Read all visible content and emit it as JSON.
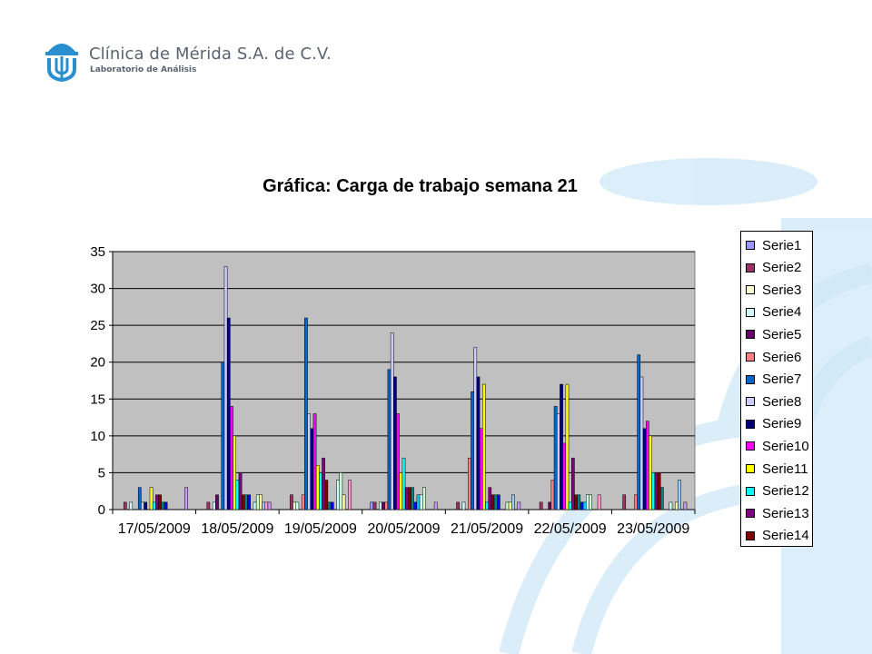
{
  "header": {
    "clinic_name": "Clínica de Mérida S.A. de C.V.",
    "clinic_subtitle": "Laboratorio de Análisis",
    "logo_icon": "clinic-logo-icon",
    "brand_color": "#2a8fce"
  },
  "chart_data": {
    "type": "bar",
    "title": "Gráfica: Carga de trabajo semana 21",
    "xlabel": "",
    "ylabel": "",
    "ylim": [
      0,
      35
    ],
    "yticks": [
      0,
      5,
      10,
      15,
      20,
      25,
      30,
      35
    ],
    "grid": true,
    "legend_placement": "right",
    "plot_background": "#c0c0c0",
    "categories": [
      "17/05/2009",
      "18/05/2009",
      "19/05/2009",
      "20/05/2009",
      "21/05/2009",
      "22/05/2009",
      "23/05/2009"
    ],
    "series": [
      {
        "name": "Serie1",
        "color": "#9999ff",
        "values": [
          0,
          0,
          0,
          1,
          0,
          0,
          0
        ]
      },
      {
        "name": "Serie2",
        "color": "#993366",
        "values": [
          1,
          1,
          2,
          1,
          1,
          1,
          2
        ]
      },
      {
        "name": "Serie3",
        "color": "#ffffcc",
        "values": [
          0,
          0,
          1,
          0,
          0,
          0,
          0
        ]
      },
      {
        "name": "Serie4",
        "color": "#ccffff",
        "values": [
          1,
          1,
          1,
          1,
          1,
          0,
          0
        ]
      },
      {
        "name": "Serie5",
        "color": "#660066",
        "values": [
          0,
          2,
          0,
          1,
          0,
          1,
          0
        ]
      },
      {
        "name": "Serie6",
        "color": "#ff8080",
        "values": [
          0,
          0,
          2,
          1,
          7,
          4,
          2
        ]
      },
      {
        "name": "Serie7",
        "color": "#0066cc",
        "values": [
          3,
          20,
          26,
          19,
          16,
          14,
          21
        ]
      },
      {
        "name": "Serie8",
        "color": "#ccccff",
        "values": [
          1,
          33,
          13,
          24,
          22,
          13,
          18
        ]
      },
      {
        "name": "Serie9",
        "color": "#000080",
        "values": [
          1,
          26,
          11,
          18,
          18,
          17,
          11
        ]
      },
      {
        "name": "Serie10",
        "color": "#ff00ff",
        "values": [
          0,
          14,
          13,
          13,
          11,
          9,
          12
        ]
      },
      {
        "name": "Serie11",
        "color": "#ffff00",
        "values": [
          3,
          10,
          6,
          5,
          17,
          17,
          10
        ]
      },
      {
        "name": "Serie12",
        "color": "#00ffff",
        "values": [
          1,
          4,
          5,
          7,
          1,
          1,
          5
        ]
      },
      {
        "name": "Serie13",
        "color": "#800080",
        "values": [
          2,
          5,
          7,
          3,
          3,
          7,
          5
        ]
      },
      {
        "name": "Serie14",
        "color": "#800000",
        "values": [
          2,
          2,
          4,
          3,
          2,
          2,
          5
        ]
      },
      {
        "name": "",
        "color": "#008080",
        "values": [
          1,
          2,
          1,
          3,
          2,
          2,
          3
        ]
      },
      {
        "name": "",
        "color": "#0000ff",
        "values": [
          1,
          2,
          1,
          1,
          2,
          1,
          0
        ]
      },
      {
        "name": "",
        "color": "#00ccff",
        "values": [
          0,
          0,
          0,
          2,
          0,
          1,
          0
        ]
      },
      {
        "name": "",
        "color": "#ccffff",
        "values": [
          0,
          1,
          4,
          2,
          0,
          2,
          1
        ]
      },
      {
        "name": "",
        "color": "#ccffcc",
        "values": [
          0,
          2,
          5,
          3,
          1,
          2,
          0
        ]
      },
      {
        "name": "",
        "color": "#ffff99",
        "values": [
          0,
          2,
          2,
          0,
          1,
          0,
          1
        ]
      },
      {
        "name": "",
        "color": "#99ccff",
        "values": [
          0,
          1,
          0,
          0,
          2,
          0,
          4
        ]
      },
      {
        "name": "",
        "color": "#ff99cc",
        "values": [
          0,
          1,
          4,
          0,
          0,
          2,
          0
        ]
      },
      {
        "name": "",
        "color": "#cc99ff",
        "values": [
          3,
          1,
          0,
          1,
          1,
          0,
          1
        ]
      }
    ]
  }
}
